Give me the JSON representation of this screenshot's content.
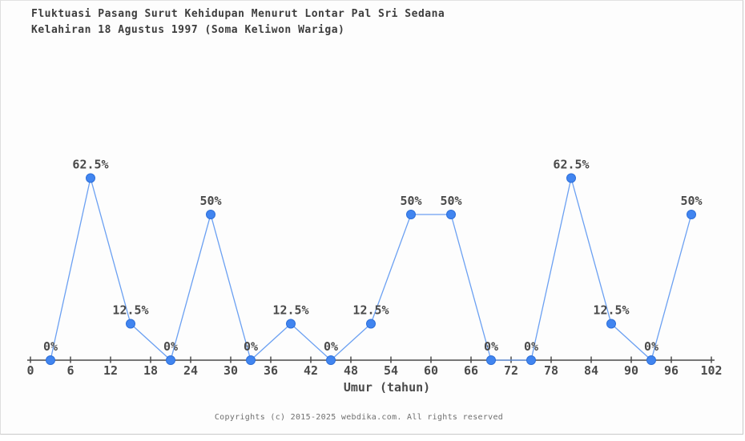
{
  "page": {
    "background": "#fdfdfd",
    "border_color": "#c9c9c9"
  },
  "title": {
    "line1": "Fluktuasi Pasang Surut Kehidupan Menurut Lontar Pal Sri Sedana",
    "line2": "Kelahiran 18 Agustus 1997 (Soma Keliwon Wariga)"
  },
  "footer": {
    "copyright": "Copyrights (c) 2015-2025 webdika.com. All rights reserved"
  },
  "chart_data": {
    "type": "line",
    "title": "Fluktuasi Pasang Surut Kehidupan Menurut Lontar Pal Sri Sedana Kelahiran 18 Agustus 1997 (Soma Keliwon Wariga)",
    "xlabel": "Umur (tahun)",
    "ylabel": "",
    "x": [
      3,
      9,
      15,
      21,
      27,
      33,
      39,
      45,
      51,
      57,
      63,
      69,
      75,
      81,
      87,
      93,
      99
    ],
    "values": [
      0,
      62.5,
      12.5,
      0,
      50,
      0,
      12.5,
      0,
      12.5,
      50,
      50,
      0,
      0,
      62.5,
      12.5,
      0,
      50
    ],
    "point_labels": [
      "0%",
      "62.5%",
      "12.5%",
      "0%",
      "50%",
      "0%",
      "12.5%",
      "0%",
      "12.5%",
      "50%",
      "50%",
      "0%",
      "0%",
      "62.5%",
      "12.5%",
      "0%",
      "50%"
    ],
    "x_ticks": [
      0,
      6,
      12,
      18,
      24,
      30,
      36,
      42,
      48,
      54,
      60,
      66,
      72,
      78,
      84,
      90,
      96,
      102
    ],
    "xlim": [
      0,
      102
    ],
    "ylim": [
      0,
      100
    ],
    "grid": false,
    "legend": "none",
    "colors": {
      "marker_fill": "#4185f0",
      "marker_stroke": "#2d6fd9",
      "line": "#6ba0f2",
      "axis": "#4a4a4a",
      "tick_label": "#4a4a4a",
      "point_label": "#4a4a4a",
      "title": "#3d3d3d",
      "copyright": "#6f6f6f"
    }
  }
}
